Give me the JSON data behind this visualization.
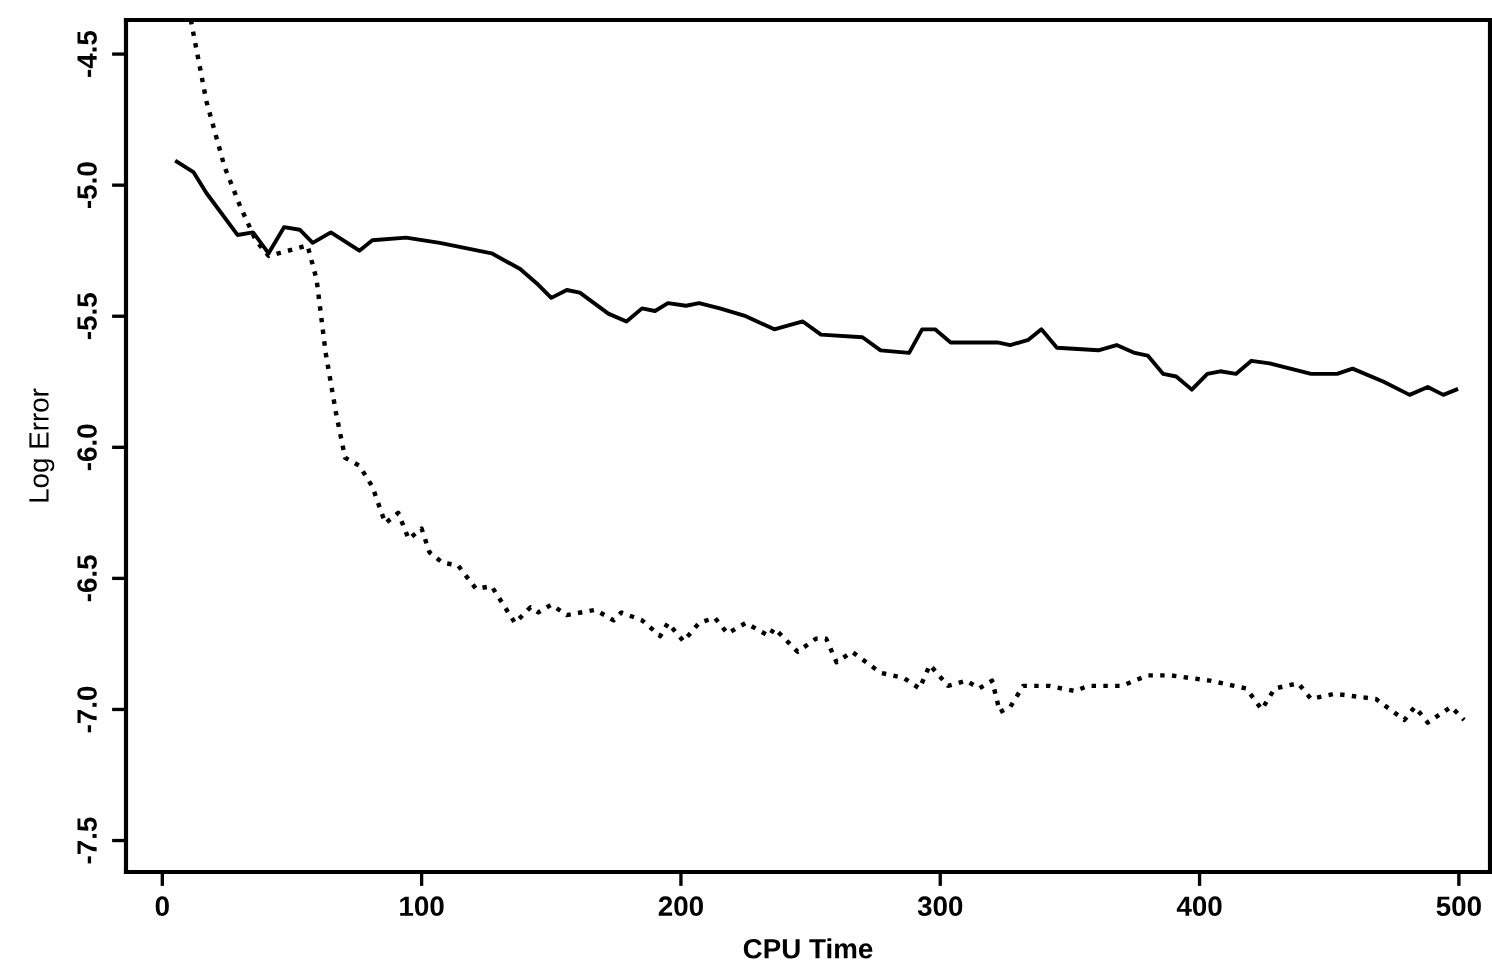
{
  "chart_data": {
    "type": "line",
    "xlabel": "CPU Time",
    "ylabel": "Log Error",
    "xlim": [
      -14,
      512
    ],
    "ylim": [
      -7.62,
      -4.37
    ],
    "xticks": [
      0,
      100,
      200,
      300,
      400,
      500
    ],
    "yticks": [
      -7.5,
      {
        "value": -7,
        "label": "-7.0"
      },
      -6.5,
      {
        "value": -6,
        "label": "-6.0"
      },
      -5.5,
      {
        "value": -5,
        "label": "-5.0"
      },
      -4.5
    ],
    "grid": false,
    "marker": "none",
    "series": [
      {
        "color": "#000000",
        "line_style": "solid",
        "x": [
          5.6,
          12,
          17,
          29,
          35,
          41,
          47,
          53,
          58,
          65,
          76,
          81,
          94,
          107,
          117,
          127,
          138,
          145,
          150,
          156,
          161,
          172,
          179,
          185,
          190,
          195,
          202,
          207,
          215,
          225,
          236,
          247,
          254,
          270,
          277,
          288,
          293,
          298,
          304,
          322,
          327,
          334,
          339,
          345,
          361,
          368,
          375,
          380,
          386,
          391,
          397,
          403,
          408,
          414,
          420,
          427,
          435,
          443,
          453,
          459,
          471,
          481,
          488,
          494,
          499
        ],
        "values": [
          -4.91,
          -4.95,
          -5.03,
          -5.19,
          -5.18,
          -5.26,
          -5.16,
          -5.17,
          -5.22,
          -5.18,
          -5.25,
          -5.21,
          -5.2,
          -5.22,
          -5.24,
          -5.26,
          -5.32,
          -5.38,
          -5.43,
          -5.4,
          -5.41,
          -5.49,
          -5.52,
          -5.47,
          -5.48,
          -5.45,
          -5.46,
          -5.45,
          -5.47,
          -5.5,
          -5.55,
          -5.52,
          -5.57,
          -5.58,
          -5.63,
          -5.64,
          -5.55,
          -5.55,
          -5.6,
          -5.6,
          -5.61,
          -5.59,
          -5.55,
          -5.62,
          -5.63,
          -5.61,
          -5.64,
          -5.65,
          -5.72,
          -5.73,
          -5.78,
          -5.72,
          -5.71,
          -5.72,
          -5.67,
          -5.68,
          -5.7,
          -5.72,
          -5.72,
          -5.7,
          -5.75,
          -5.8,
          -5.77,
          -5.8,
          -5.78
        ]
      },
      {
        "color": "#000000",
        "line_style": "dotted",
        "x": [
          11,
          17,
          24,
          30,
          36,
          41,
          56,
          59.5,
          63,
          67,
          70.5,
          76,
          81,
          86,
          91,
          95,
          100,
          103,
          108,
          114,
          121,
          127,
          136,
          142,
          145,
          150,
          156,
          167,
          174,
          177,
          185,
          192,
          195,
          201,
          207,
          213,
          218,
          225,
          234,
          236,
          245,
          252,
          256,
          260,
          266,
          277,
          286,
          292,
          296,
          303,
          310,
          315,
          320,
          323,
          327,
          332,
          342,
          352,
          357,
          370,
          380,
          389,
          404,
          418,
          424,
          429,
          438,
          443,
          452,
          468,
          479,
          483,
          488,
          497,
          502
        ],
        "values": [
          -4.37,
          -4.68,
          -4.93,
          -5.08,
          -5.21,
          -5.27,
          -5.23,
          -5.36,
          -5.64,
          -5.87,
          -6.04,
          -6.07,
          -6.15,
          -6.29,
          -6.25,
          -6.35,
          -6.31,
          -6.4,
          -6.44,
          -6.45,
          -6.54,
          -6.53,
          -6.67,
          -6.61,
          -6.63,
          -6.6,
          -6.64,
          -6.62,
          -6.66,
          -6.63,
          -6.66,
          -6.72,
          -6.67,
          -6.74,
          -6.67,
          -6.65,
          -6.71,
          -6.67,
          -6.72,
          -6.69,
          -6.78,
          -6.73,
          -6.73,
          -6.82,
          -6.78,
          -6.86,
          -6.88,
          -6.92,
          -6.83,
          -6.91,
          -6.89,
          -6.92,
          -6.89,
          -7.01,
          -6.99,
          -6.91,
          -6.91,
          -6.93,
          -6.91,
          -6.91,
          -6.87,
          -6.87,
          -6.89,
          -6.92,
          -7.0,
          -6.92,
          -6.9,
          -6.96,
          -6.94,
          -6.96,
          -7.04,
          -6.99,
          -7.05,
          -6.99,
          -7.04
        ]
      }
    ]
  }
}
